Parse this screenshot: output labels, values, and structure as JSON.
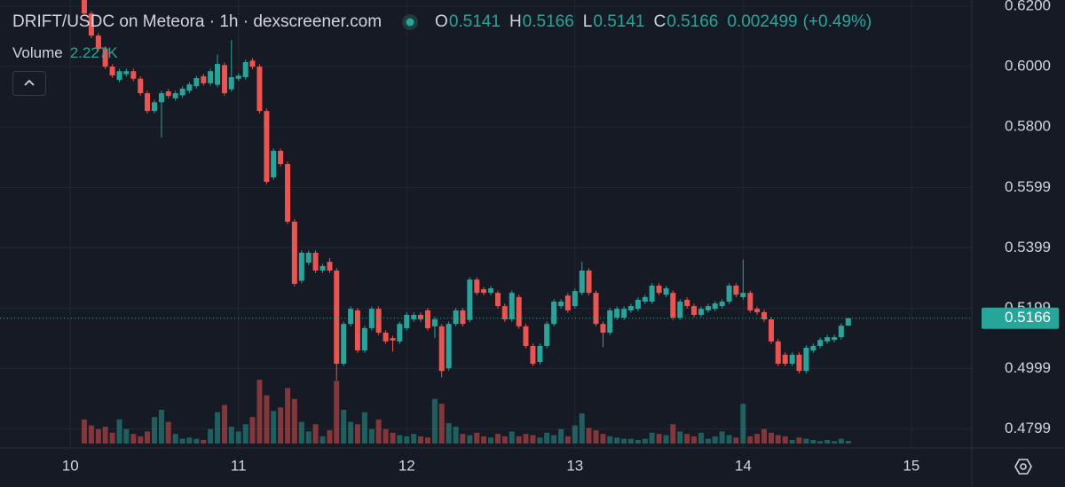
{
  "chart_data": {
    "type": "candlestick",
    "title": "DRIFT/USDC on Meteora · 1h · dexscreener.com",
    "ohlc_legend": [
      {
        "label": "O",
        "value": 0.5141
      },
      {
        "label": "H",
        "value": 0.5166
      },
      {
        "label": "L",
        "value": 0.5141
      },
      {
        "label": "C",
        "value": 0.5166
      }
    ],
    "change": 0.002499,
    "change_pct": {
      "value": 0.49,
      "label": "(+0.49%)"
    },
    "volume_legend": {
      "label": "Volume",
      "value": 2227,
      "value_label": "2.227K"
    },
    "last_price": 0.5166,
    "up_color": "#26a69a",
    "down_color": "#ef5350",
    "grid": true,
    "xlim": [
      9.582,
      15.349
    ],
    "xticks": [
      10,
      11,
      12,
      13,
      14,
      15
    ],
    "ylim": [
      0.4721,
      0.6221
    ],
    "yticks": [
      0.4799,
      0.4999,
      {
        "value": 0.5199,
        "label": "0.5199"
      },
      0.5399,
      0.5599,
      {
        "value": 0.58,
        "label": "0.5800"
      },
      {
        "value": 0.6,
        "label": "0.6000"
      },
      {
        "value": 0.62,
        "label": "0.6200"
      }
    ],
    "x": [
      10.083,
      10.125,
      10.167,
      10.208,
      10.25,
      10.292,
      10.333,
      10.375,
      10.417,
      10.458,
      10.5,
      10.542,
      10.583,
      10.625,
      10.667,
      10.708,
      10.75,
      10.792,
      10.833,
      10.875,
      10.917,
      10.958,
      11,
      11.042,
      11.083,
      11.125,
      11.167,
      11.208,
      11.25,
      11.292,
      11.333,
      11.375,
      11.417,
      11.458,
      11.5,
      11.542,
      11.583,
      11.625,
      11.667,
      11.708,
      11.75,
      11.792,
      11.833,
      11.875,
      11.917,
      11.958,
      12,
      12.042,
      12.083,
      12.125,
      12.167,
      12.208,
      12.25,
      12.292,
      12.333,
      12.375,
      12.417,
      12.458,
      12.5,
      12.542,
      12.583,
      12.625,
      12.667,
      12.708,
      12.75,
      12.792,
      12.833,
      12.875,
      12.917,
      12.958,
      13,
      13.042,
      13.083,
      13.125,
      13.167,
      13.208,
      13.25,
      13.292,
      13.333,
      13.375,
      13.417,
      13.458,
      13.5,
      13.542,
      13.583,
      13.625,
      13.667,
      13.708,
      13.75,
      13.792,
      13.833,
      13.875,
      13.917,
      13.958,
      14,
      14.042,
      14.083,
      14.125,
      14.167,
      14.208,
      14.25,
      14.292,
      14.333,
      14.375,
      14.417,
      14.458,
      14.5,
      14.542,
      14.583,
      14.625
    ],
    "open": [
      0.623,
      0.6176,
      0.6103,
      0.6059,
      0.6,
      0.5956,
      0.5975,
      0.5985,
      0.596,
      0.5912,
      0.5853,
      0.5882,
      0.5918,
      0.5895,
      0.5905,
      0.592,
      0.5935,
      0.5968,
      0.5945,
      0.594,
      0.6005,
      0.5925,
      0.596,
      0.5965,
      0.602,
      0.6,
      0.5853,
      0.5633,
      0.5721,
      0.5677,
      0.5486,
      0.529,
      0.535,
      0.5383,
      0.5324,
      0.5353,
      0.5324,
      0.5015,
      0.5147,
      0.5192,
      0.5059,
      0.5133,
      0.5197,
      0.5118,
      0.51,
      0.5089,
      0.5133,
      0.5162,
      0.5177,
      0.5192,
      0.5139,
      0.5139,
      0.5,
      0.5147,
      0.5192,
      0.516,
      0.5294,
      0.5262,
      0.525,
      0.525,
      0.5206,
      0.5162,
      0.5236,
      0.5139,
      0.5074,
      0.5021,
      0.5074,
      0.5147,
      0.5206,
      0.5241,
      0.5206,
      0.525,
      0.5324,
      0.525,
      0.5147,
      0.5118,
      0.5168,
      0.5168,
      0.5192,
      0.5197,
      0.5221,
      0.5221,
      0.5274,
      0.5244,
      0.525,
      0.5168,
      0.5227,
      0.5206,
      0.5177,
      0.5192,
      0.5197,
      0.5206,
      0.5221,
      0.5274,
      0.5236,
      0.525,
      0.5197,
      0.5186,
      0.5162,
      0.5089,
      0.5045,
      0.5015,
      0.5045,
      0.4991,
      0.5059,
      0.5074,
      0.5089,
      0.5094,
      0.5103,
      0.5141
    ],
    "high": [
      0.6238,
      0.6184,
      0.6111,
      0.6067,
      0.6008,
      0.5993,
      0.5993,
      0.5993,
      0.5968,
      0.592,
      0.589,
      0.592,
      0.5926,
      0.592,
      0.5935,
      0.5949,
      0.597,
      0.5976,
      0.5993,
      0.604,
      0.6013,
      0.6088,
      0.5978,
      0.6023,
      0.6028,
      0.6008,
      0.5861,
      0.5729,
      0.5729,
      0.5685,
      0.5494,
      0.5391,
      0.5391,
      0.5391,
      0.5347,
      0.5365,
      0.5332,
      0.5155,
      0.5205,
      0.52,
      0.5141,
      0.5205,
      0.5205,
      0.5126,
      0.5108,
      0.5155,
      0.5185,
      0.5185,
      0.5185,
      0.52,
      0.517,
      0.5147,
      0.5155,
      0.52,
      0.52,
      0.5302,
      0.5302,
      0.527,
      0.5273,
      0.5258,
      0.5214,
      0.5258,
      0.5244,
      0.5147,
      0.5082,
      0.5082,
      0.5155,
      0.5229,
      0.5229,
      0.5249,
      0.5264,
      0.5353,
      0.5332,
      0.5258,
      0.5155,
      0.52,
      0.5205,
      0.5205,
      0.5214,
      0.5235,
      0.5244,
      0.5282,
      0.5282,
      0.5273,
      0.5258,
      0.5229,
      0.5235,
      0.5214,
      0.5205,
      0.5214,
      0.5223,
      0.5229,
      0.5282,
      0.5282,
      0.536,
      0.5258,
      0.5205,
      0.5194,
      0.517,
      0.5097,
      0.5053,
      0.5053,
      0.5053,
      0.5076,
      0.5082,
      0.5102,
      0.5111,
      0.5111,
      0.5149,
      0.5166
    ],
    "low": [
      0.6168,
      0.6095,
      0.6051,
      0.5992,
      0.5963,
      0.5948,
      0.5967,
      0.5952,
      0.5904,
      0.5845,
      0.5845,
      0.5765,
      0.5895,
      0.5887,
      0.5897,
      0.5912,
      0.5927,
      0.5937,
      0.5937,
      0.5932,
      0.5904,
      0.5917,
      0.5952,
      0.5957,
      0.5992,
      0.5845,
      0.561,
      0.5625,
      0.5669,
      0.5478,
      0.5272,
      0.5282,
      0.5342,
      0.5316,
      0.5316,
      0.5316,
      0.496,
      0.5007,
      0.5139,
      0.5051,
      0.5051,
      0.5125,
      0.511,
      0.5081,
      0.5055,
      0.5081,
      0.5125,
      0.5154,
      0.5154,
      0.5125,
      0.51,
      0.497,
      0.4992,
      0.5139,
      0.5139,
      0.5152,
      0.5242,
      0.5242,
      0.5242,
      0.5198,
      0.5154,
      0.5154,
      0.5131,
      0.5066,
      0.5007,
      0.5013,
      0.5066,
      0.5139,
      0.5198,
      0.5184,
      0.5198,
      0.5242,
      0.5242,
      0.5139,
      0.507,
      0.511,
      0.516,
      0.516,
      0.5184,
      0.5189,
      0.5213,
      0.5213,
      0.5242,
      0.5236,
      0.516,
      0.516,
      0.5198,
      0.5169,
      0.5169,
      0.5184,
      0.5189,
      0.5198,
      0.5213,
      0.5236,
      0.5228,
      0.5184,
      0.5178,
      0.5154,
      0.5081,
      0.5007,
      0.5007,
      0.5007,
      0.4983,
      0.4983,
      0.5051,
      0.5066,
      0.5081,
      0.5086,
      0.5095,
      0.5141
    ],
    "close": [
      0.6176,
      0.6103,
      0.6059,
      0.6,
      0.5971,
      0.5985,
      0.5985,
      0.596,
      0.5912,
      0.5853,
      0.5882,
      0.5912,
      0.5903,
      0.5912,
      0.5927,
      0.5941,
      0.5962,
      0.5945,
      0.5985,
      0.6009,
      0.5912,
      0.5965,
      0.597,
      0.6015,
      0.6,
      0.5853,
      0.5618,
      0.5721,
      0.5677,
      0.5486,
      0.528,
      0.5383,
      0.5383,
      0.5324,
      0.5339,
      0.5324,
      0.5015,
      0.5147,
      0.5197,
      0.5059,
      0.5133,
      0.5197,
      0.5118,
      0.5089,
      0.5092,
      0.5147,
      0.5177,
      0.5177,
      0.5162,
      0.5133,
      0.5162,
      0.4991,
      0.5147,
      0.5192,
      0.5147,
      0.5294,
      0.525,
      0.525,
      0.5265,
      0.5206,
      0.5162,
      0.525,
      0.5139,
      0.5074,
      0.5015,
      0.5074,
      0.5147,
      0.5221,
      0.5221,
      0.5192,
      0.5256,
      0.5324,
      0.525,
      0.5147,
      0.5118,
      0.5192,
      0.5197,
      0.5197,
      0.5206,
      0.5227,
      0.5236,
      0.5274,
      0.525,
      0.5265,
      0.5168,
      0.5221,
      0.5206,
      0.5177,
      0.5197,
      0.5206,
      0.5215,
      0.5221,
      0.5274,
      0.5244,
      0.525,
      0.5192,
      0.5186,
      0.5162,
      0.5089,
      0.5015,
      0.5015,
      0.5045,
      0.4991,
      0.5068,
      0.5074,
      0.5094,
      0.5103,
      0.5103,
      0.5141,
      0.5166
    ],
    "volume": [
      20000,
      15000,
      12000,
      14000,
      9000,
      20000,
      12000,
      8000,
      6000,
      10000,
      22000,
      28000,
      18000,
      8000,
      4000,
      5000,
      4000,
      3000,
      12000,
      26000,
      32000,
      14000,
      10000,
      16000,
      22000,
      53000,
      40000,
      27000,
      30000,
      46000,
      37000,
      18000,
      10000,
      16000,
      6000,
      11000,
      52000,
      28000,
      18000,
      16000,
      26000,
      12000,
      20000,
      12000,
      9000,
      7000,
      6000,
      8000,
      6000,
      5000,
      37000,
      33000,
      17000,
      14000,
      8000,
      7000,
      9000,
      6000,
      5000,
      8000,
      6000,
      10000,
      6000,
      8000,
      7000,
      5000,
      9000,
      7000,
      12000,
      6000,
      15000,
      25000,
      13000,
      11000,
      8000,
      6000,
      5000,
      4000,
      4000,
      3000,
      4000,
      9000,
      8000,
      7000,
      16000,
      10000,
      8000,
      6000,
      9000,
      4000,
      6000,
      10000,
      7000,
      5000,
      33000,
      6000,
      8000,
      12000,
      9000,
      7000,
      6000,
      3000,
      5000,
      4000,
      3000,
      2000,
      3000,
      2000,
      4000,
      2227
    ]
  }
}
